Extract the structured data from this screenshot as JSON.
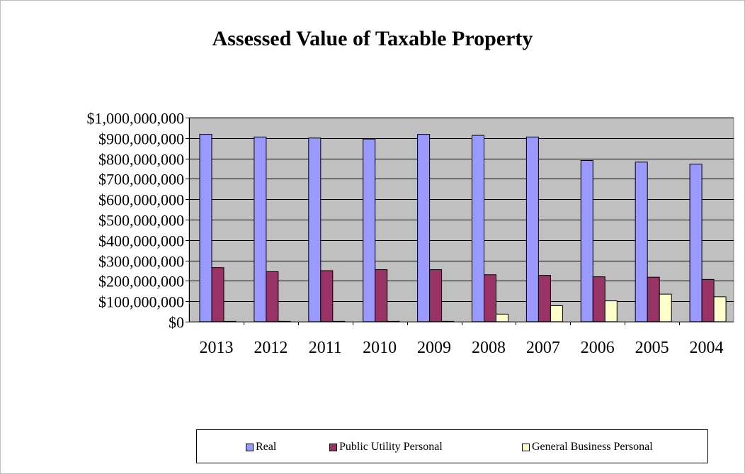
{
  "chart_data": {
    "type": "bar",
    "title": "Assessed Value of Taxable Property",
    "xlabel": "",
    "ylabel": "",
    "categories": [
      "2013",
      "2012",
      "2011",
      "2010",
      "2009",
      "2008",
      "2007",
      "2006",
      "2005",
      "2004"
    ],
    "ylim": [
      0,
      1000000000
    ],
    "yticks": [
      0,
      100000000,
      200000000,
      300000000,
      400000000,
      500000000,
      600000000,
      700000000,
      800000000,
      900000000,
      1000000000
    ],
    "ytick_labels": [
      "$0",
      "$100,000,000",
      "$200,000,000",
      "$300,000,000",
      "$400,000,000",
      "$500,000,000",
      "$600,000,000",
      "$700,000,000",
      "$800,000,000",
      "$900,000,000",
      "$1,000,000,000"
    ],
    "grid": true,
    "legend_position": "bottom",
    "series": [
      {
        "name": "Real",
        "color": "#9999ff",
        "values": [
          918000000,
          905000000,
          900000000,
          895000000,
          918000000,
          913000000,
          905000000,
          790000000,
          782000000,
          772000000
        ]
      },
      {
        "name": "Public Utility Personal",
        "color": "#993366",
        "values": [
          265000000,
          245000000,
          250000000,
          255000000,
          255000000,
          230000000,
          227000000,
          220000000,
          218000000,
          207000000
        ]
      },
      {
        "name": "General Business Personal",
        "color": "#ffffcc",
        "values": [
          0,
          0,
          0,
          1000000,
          2000000,
          37000000,
          78000000,
          102000000,
          135000000,
          122000000
        ]
      }
    ],
    "plot_background": "#c0c0c0"
  }
}
